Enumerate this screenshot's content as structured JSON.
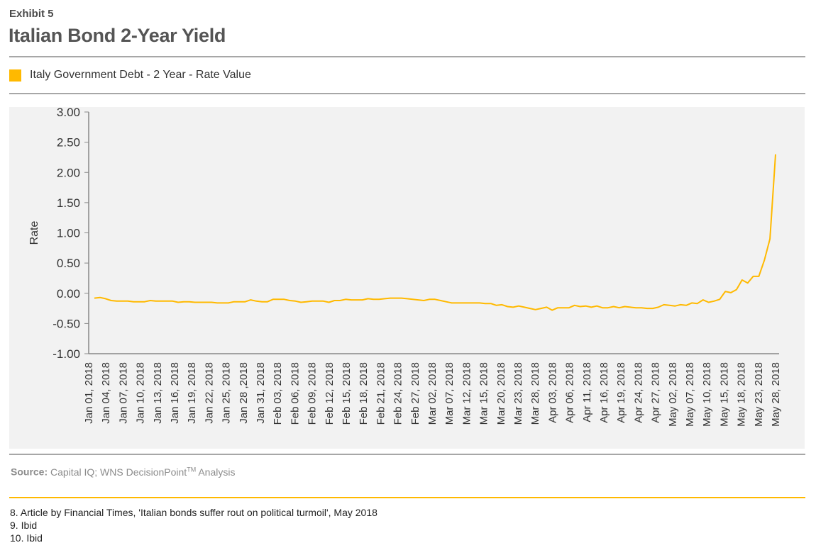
{
  "header": {
    "exhibit": "Exhibit 5",
    "title": "Italian Bond 2-Year Yield"
  },
  "legend": {
    "label": "Italy Government Debt - 2 Year - Rate Value",
    "color": "#ffb900"
  },
  "source": {
    "label": "Source:",
    "text": "Capital IQ; WNS DecisionPoint",
    "tm": "TM",
    "suffix": " Analysis"
  },
  "footnotes": [
    "8. Article by Financial Times, 'Italian bonds suffer rout on political turmoil', May 2018",
    "9. Ibid",
    "10. Ibid"
  ],
  "chart_data": {
    "type": "line",
    "ylabel": "Rate",
    "xlabel": "",
    "ylim": [
      -1.0,
      3.0
    ],
    "y_ticks": [
      "3.00",
      "2.50",
      "2.00",
      "1.50",
      "1.00",
      "0.50",
      "0.00",
      "-0.50",
      "-1.00"
    ],
    "x_tick_labels": [
      "Jan 01, 2018",
      "Jan 04, 2018",
      "Jan 07, 2018",
      "Jan 10, 2018",
      "Jan 13, 2018",
      "Jan 16, 2018",
      "Jan 19, 2018",
      "Jan 22, 2018",
      "Jan 25, 2018",
      "Jan 28 ,2018",
      "Jan 31, 2018",
      "Feb 03, 2018",
      "Feb 06, 2018",
      "Feb 09, 2018",
      "Feb 12, 2018",
      "Feb 15, 2018",
      "Feb 18, 2018",
      "Feb 21, 2018",
      "Feb 24, 2018",
      "Feb 27, 2018",
      "Mar 02, 2018",
      "Mar 07, 2018",
      "Mar 12, 2018",
      "Mar 15, 2018",
      "Mar 20, 2018",
      "Mar 23, 2018",
      "Mar 28, 2018",
      "Apr 03, 2018",
      "Apr 06, 2018",
      "Apr 11, 2018",
      "Apr 16, 2018",
      "Apr 19, 2018",
      "Apr 24, 2018",
      "Apr 27, 2018",
      "May 02, 2018",
      "May 07, 2018",
      "May 10, 2018",
      "May 15, 2018",
      "May 18, 2018",
      "May 23, 2018",
      "May 28, 2018"
    ],
    "series": [
      {
        "name": "Italy Government Debt - 2 Year - Rate Value",
        "color": "#ffb900",
        "values": [
          -0.08,
          -0.07,
          -0.09,
          -0.12,
          -0.13,
          -0.13,
          -0.13,
          -0.14,
          -0.14,
          -0.14,
          -0.12,
          -0.13,
          -0.13,
          -0.13,
          -0.13,
          -0.15,
          -0.14,
          -0.14,
          -0.15,
          -0.15,
          -0.15,
          -0.15,
          -0.16,
          -0.16,
          -0.16,
          -0.14,
          -0.14,
          -0.14,
          -0.11,
          -0.13,
          -0.14,
          -0.14,
          -0.1,
          -0.1,
          -0.1,
          -0.12,
          -0.13,
          -0.15,
          -0.14,
          -0.13,
          -0.13,
          -0.13,
          -0.15,
          -0.12,
          -0.12,
          -0.1,
          -0.11,
          -0.11,
          -0.11,
          -0.09,
          -0.1,
          -0.1,
          -0.09,
          -0.08,
          -0.08,
          -0.08,
          -0.09,
          -0.1,
          -0.11,
          -0.12,
          -0.1,
          -0.1,
          -0.12,
          -0.14,
          -0.16,
          -0.16,
          -0.16,
          -0.16,
          -0.16,
          -0.16,
          -0.17,
          -0.17,
          -0.2,
          -0.19,
          -0.22,
          -0.23,
          -0.21,
          -0.23,
          -0.25,
          -0.27,
          -0.25,
          -0.23,
          -0.28,
          -0.24,
          -0.24,
          -0.24,
          -0.2,
          -0.22,
          -0.21,
          -0.23,
          -0.21,
          -0.24,
          -0.24,
          -0.22,
          -0.24,
          -0.22,
          -0.23,
          -0.24,
          -0.24,
          -0.25,
          -0.25,
          -0.23,
          -0.19,
          -0.2,
          -0.21,
          -0.19,
          -0.2,
          -0.16,
          -0.17,
          -0.11,
          -0.15,
          -0.13,
          -0.1,
          0.03,
          0.01,
          0.06,
          0.22,
          0.17,
          0.28,
          0.28,
          0.55,
          0.9,
          2.3
        ]
      }
    ],
    "grid": false,
    "legend_position": "top-left"
  }
}
